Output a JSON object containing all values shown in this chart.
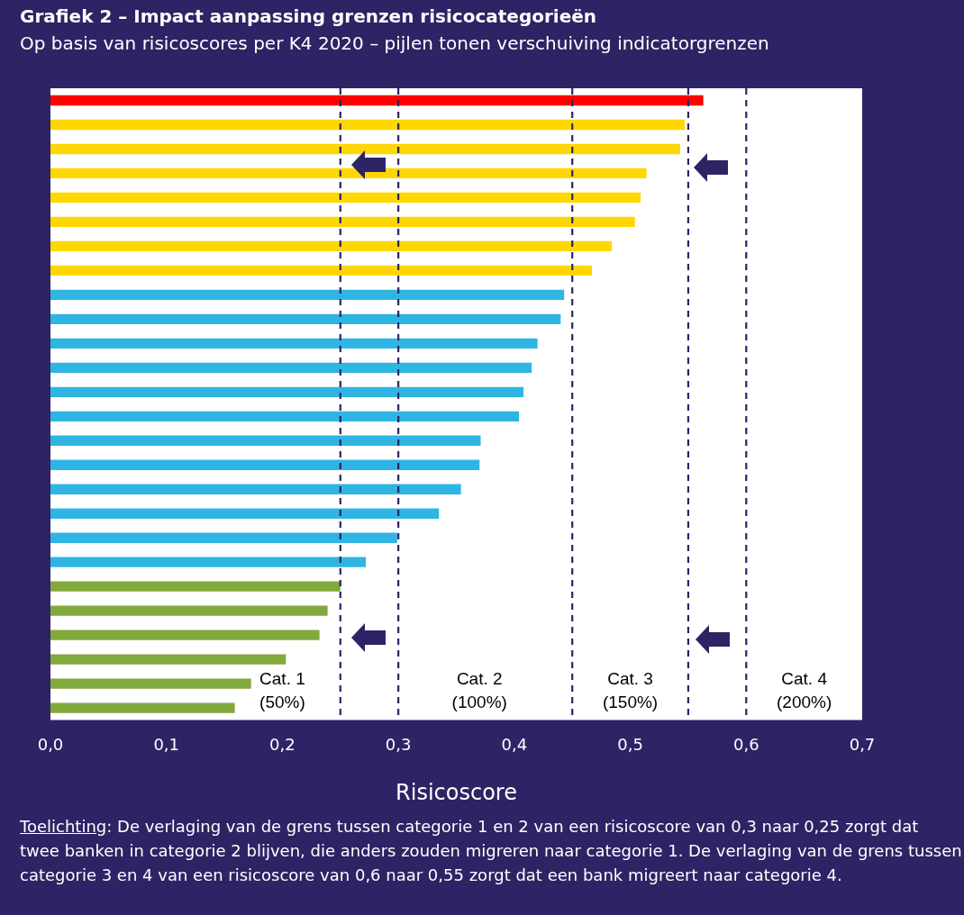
{
  "chart_data": {
    "type": "bar",
    "orientation": "horizontal",
    "title": "Grafiek  2 – Impact aanpassing grenzen risicocategorieën",
    "subtitle": "Op basis van risicoscores per K4 2020 – pijlen tonen verschuiving indicatorgrenzen",
    "xlabel": "Risicoscore",
    "categories": [
      null,
      null,
      null,
      null,
      null,
      null,
      null,
      null,
      null,
      null,
      null,
      null,
      null,
      null,
      null,
      null,
      null,
      null,
      null,
      null,
      null,
      null,
      null,
      null,
      null,
      null
    ],
    "values": [
      0.563,
      0.547,
      0.543,
      0.514,
      0.509,
      0.504,
      0.484,
      0.467,
      0.443,
      0.44,
      0.42,
      0.415,
      0.408,
      0.404,
      0.371,
      0.37,
      0.354,
      0.335,
      0.299,
      0.272,
      0.25,
      0.239,
      0.232,
      0.203,
      0.173,
      0.159
    ],
    "colors": [
      "#ff0000",
      "#ffd700",
      "#ffd700",
      "#ffd700",
      "#ffd700",
      "#ffd700",
      "#ffd700",
      "#ffd700",
      "#2fb5e3",
      "#2fb5e3",
      "#2fb5e3",
      "#2fb5e3",
      "#2fb5e3",
      "#2fb5e3",
      "#2fb5e3",
      "#2fb5e3",
      "#2fb5e3",
      "#2fb5e3",
      "#2fb5e3",
      "#2fb5e3",
      "#82a93c",
      "#82a93c",
      "#82a93c",
      "#82a93c",
      "#82a93c",
      "#82a93c"
    ],
    "xlim": [
      0,
      0.7
    ],
    "xticks": [
      {
        "value": 0,
        "label": "0,0"
      },
      {
        "value": 0.1,
        "label": "0,1"
      },
      {
        "value": 0.2,
        "label": "0,2"
      },
      {
        "value": 0.3,
        "label": "0,3"
      },
      {
        "value": 0.4,
        "label": "0,4"
      },
      {
        "value": 0.5,
        "label": "0,5"
      },
      {
        "value": 0.6,
        "label": "0,6"
      },
      {
        "value": 0.7,
        "label": "0,7"
      }
    ],
    "ref_lines": [
      {
        "axis": "x",
        "value": 0.25,
        "color": "#2e2364",
        "line_style": "dashed"
      },
      {
        "axis": "x",
        "value": 0.3,
        "color": "#2e2364",
        "line_style": "dashed"
      },
      {
        "axis": "x",
        "value": 0.45,
        "color": "#2e2364",
        "line_style": "dashed"
      },
      {
        "axis": "x",
        "value": 0.55,
        "color": "#2e2364",
        "line_style": "dashed"
      },
      {
        "axis": "x",
        "value": 0.6,
        "color": "#2e2364",
        "line_style": "dashed"
      }
    ],
    "annotations": [
      "Cat. 1\n(50%)",
      "Cat. 2\n(100%)",
      "Cat. 3\n(150%)",
      "Cat. 4\n(200%)",
      "Toelichting: De verlaging van de grens tussen categorie 1 en 2 van een risicoscore van 0,3 naar 0,25 zorgt dat twee banken in categorie 2 blijven, die anders zouden migreren naar categorie 1. De verlaging van de grens tussen categorie 3 en 4 van een risicoscore van 0,6 naar 0,55 zorgt dat een bank migreert naar categorie 4."
    ],
    "grid": false,
    "legend": false,
    "tick_labels": "x"
  }
}
